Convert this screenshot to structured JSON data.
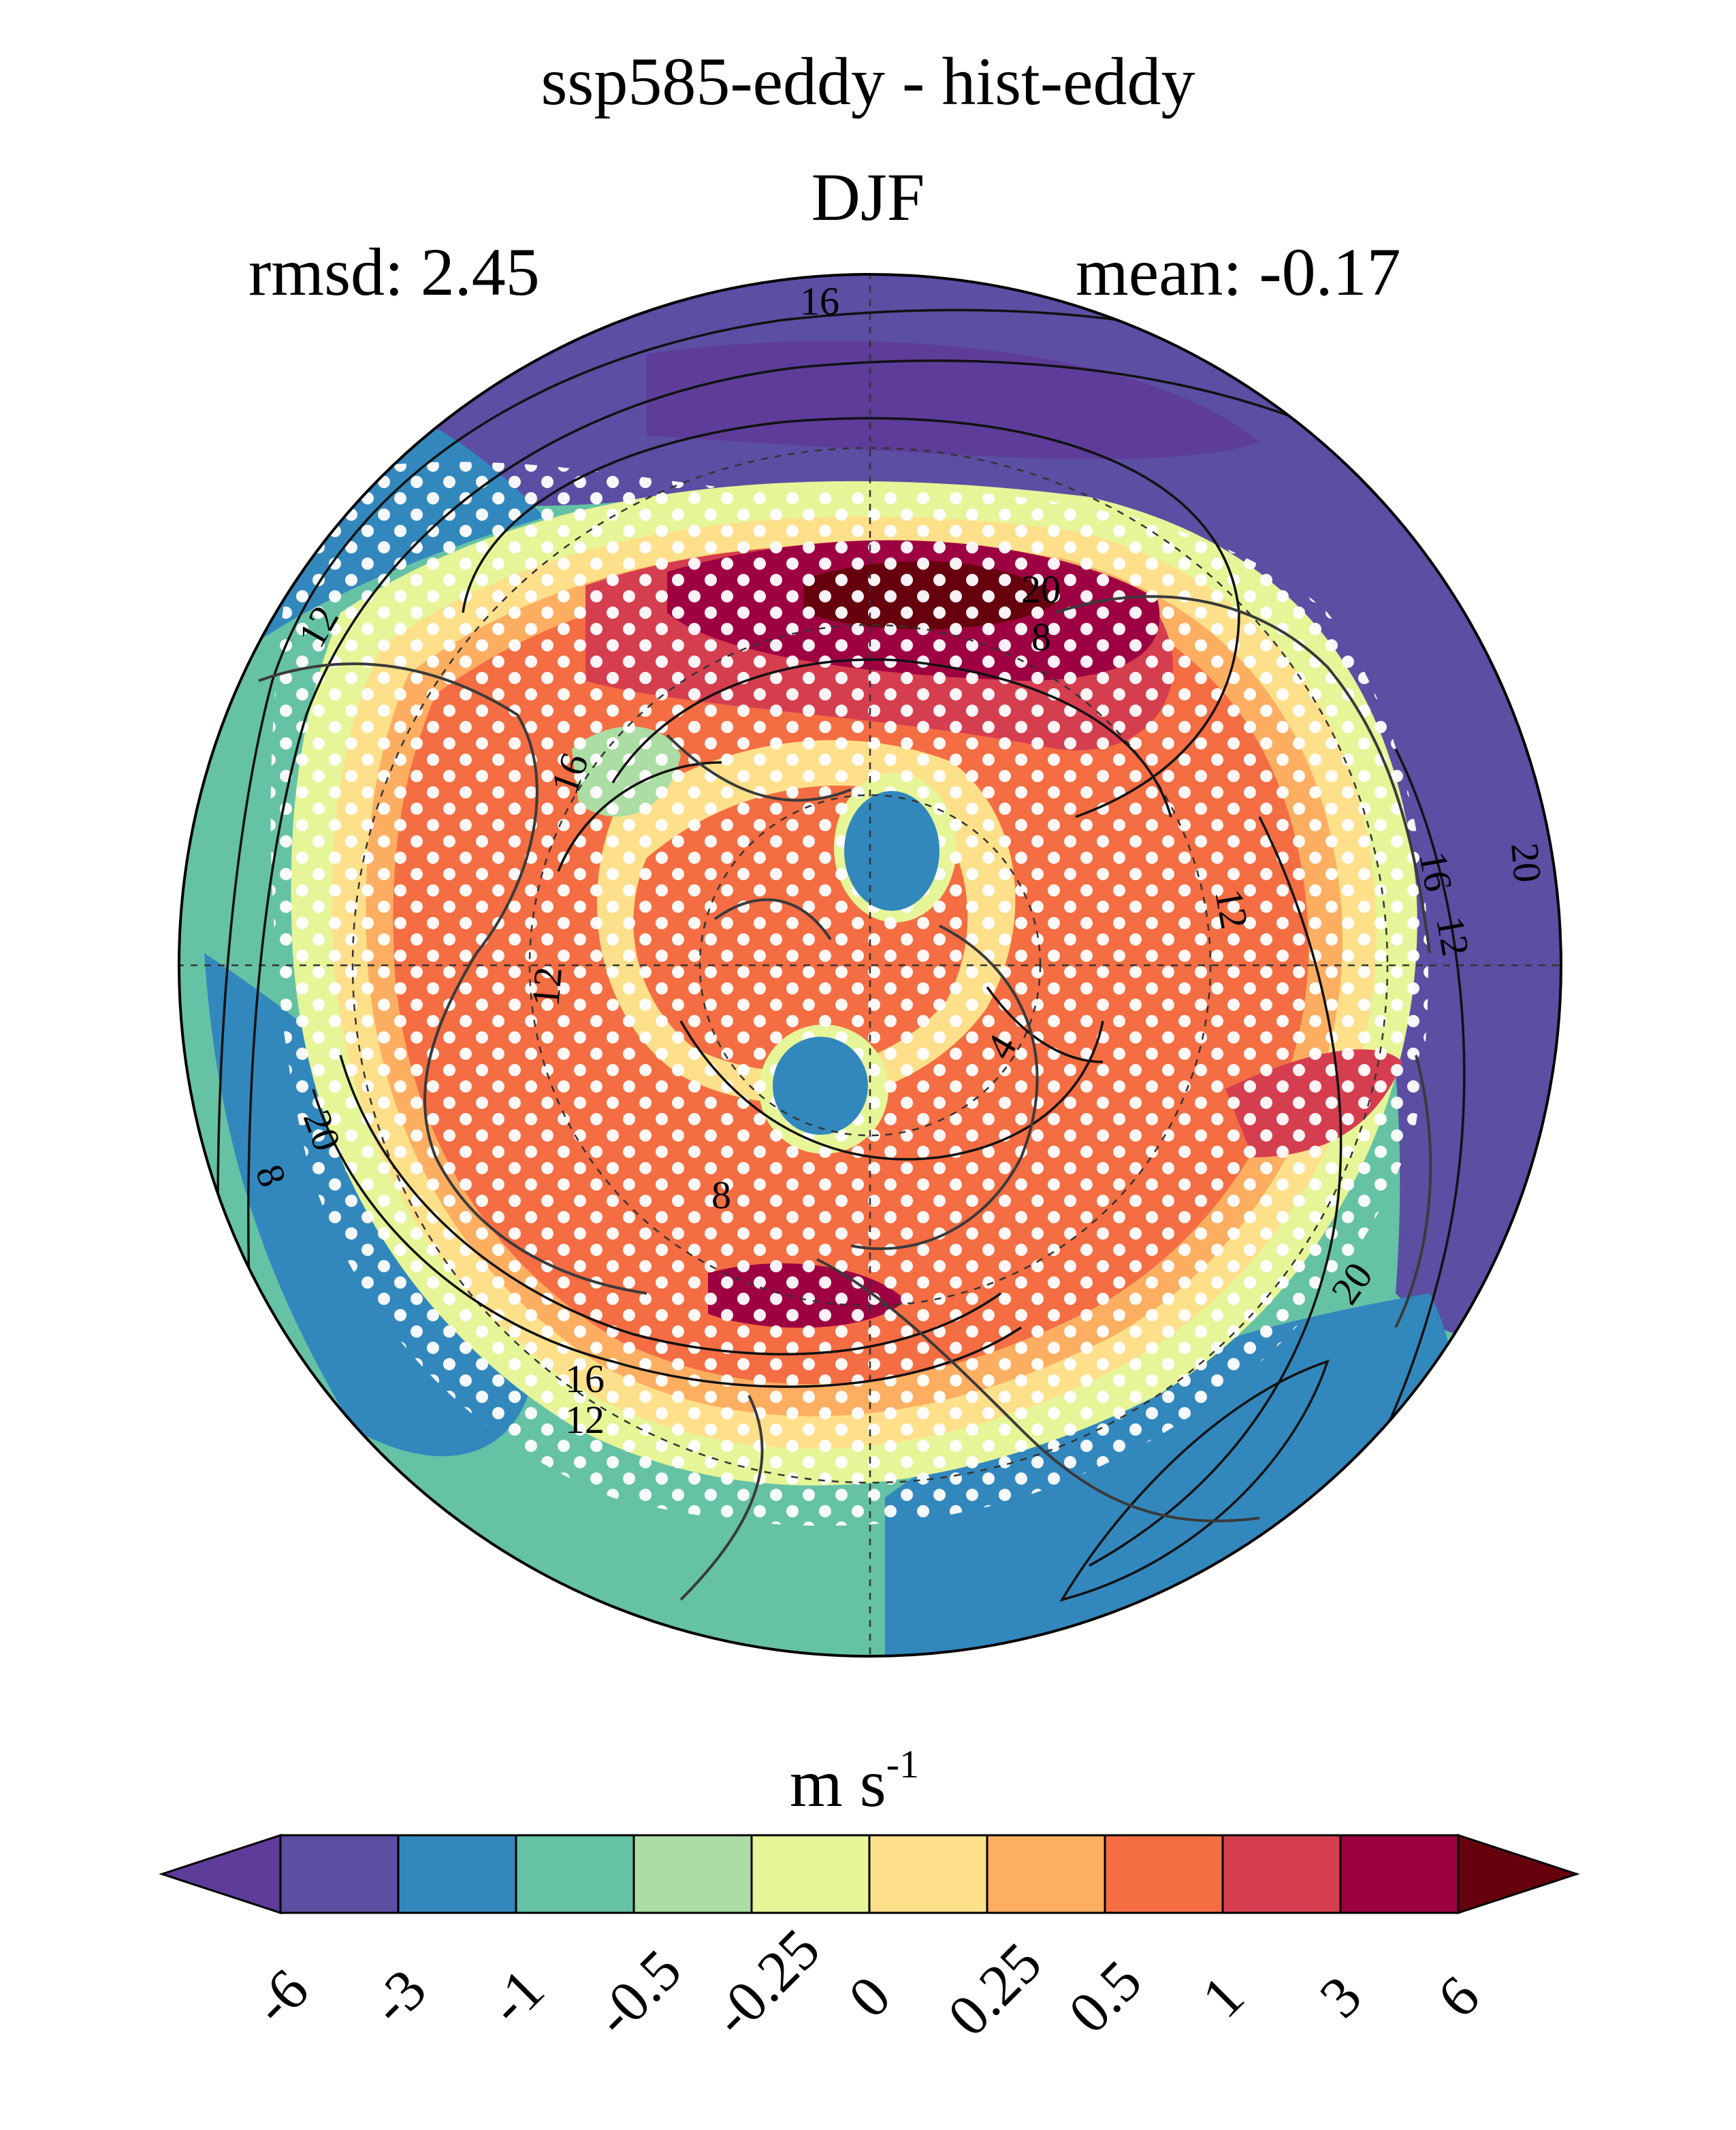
{
  "title": "ssp585-eddy - hist-eddy",
  "subtitle": "DJF",
  "stats": {
    "rmsd": "rmsd: 2.45",
    "mean": "mean: -0.17"
  },
  "colorbar": {
    "unit": "m s",
    "unit_exp": "-1",
    "ticks": [
      "-6",
      "-3",
      "-1",
      "-0.5",
      "-0.25",
      "0",
      "0.25",
      "0.5",
      "1",
      "3",
      "6"
    ],
    "colors": [
      "#5e3c99",
      "#5b4ea3",
      "#3288bd",
      "#66c2a5",
      "#abdda4",
      "#e6f598",
      "#fee08b",
      "#fdae61",
      "#f46d43",
      "#d53e4f",
      "#9e0142",
      "#67000d"
    ]
  },
  "contour_labels": [
    "16",
    "20",
    "8",
    "12",
    "12",
    "16",
    "12",
    "20",
    "20",
    "8",
    "16",
    "12",
    "8",
    "4",
    "20",
    "12",
    "16"
  ],
  "map": {
    "projection": "north-polar-stereographic",
    "field": "eddy difference",
    "stippling": "white dots",
    "coastlines": "dark grey",
    "gridlines": "dashed"
  }
}
